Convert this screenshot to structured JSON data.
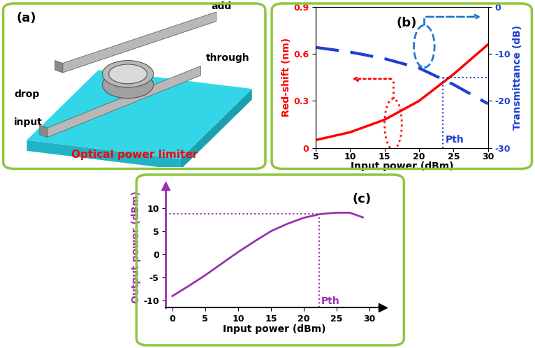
{
  "diagram": {
    "panel": "(a)",
    "caption": "Optical power limiter",
    "ports": [
      "add",
      "through",
      "drop",
      "input"
    ]
  },
  "chart_data": [
    {
      "type": "line",
      "title": "(b)",
      "x_label": "Input power (dBm)",
      "y_label": "Red-shift (nm)",
      "y2_label": "Transmittance (dB)",
      "x": [
        5,
        10,
        15,
        20,
        25,
        30
      ],
      "xlim": [
        5,
        30
      ],
      "xticks": [
        5,
        10,
        15,
        20,
        25,
        30
      ],
      "ylim": [
        0,
        0.9
      ],
      "yticks": [
        0,
        0.3,
        0.6,
        0.9
      ],
      "y2lim": [
        -30,
        0
      ],
      "y2ticks": [
        -30,
        -20,
        -10,
        0
      ],
      "series": [
        {
          "color": "#ff0000",
          "line_style": "solid",
          "values": [
            0.05,
            0.1,
            0.18,
            0.3,
            0.47,
            0.66
          ]
        },
        {
          "color": "#1f3fd0",
          "line_style": "dashed",
          "axis": "y2",
          "values": [
            -8.6,
            -9.6,
            -11.0,
            -13.0,
            -16.5,
            -20.6
          ]
        }
      ],
      "annotations": [
        {
          "text": "Pth",
          "x": 23.5,
          "y": -15,
          "axis": "y2"
        }
      ]
    },
    {
      "type": "line",
      "title": "(c)",
      "x_label": "Input power (dBm)",
      "y_label": "Output power (dBm)",
      "x": [
        0,
        2.5,
        5,
        7.5,
        10,
        12.5,
        15,
        17.5,
        20,
        22.5,
        25,
        27,
        29
      ],
      "xlim": [
        -1,
        32
      ],
      "xticks": [
        0,
        5,
        10,
        15,
        20,
        25,
        30
      ],
      "ylim": [
        -11.5,
        14.8
      ],
      "yticks": [
        -10,
        -5,
        0,
        5,
        10
      ],
      "series": [
        {
          "color": "#9b30b0",
          "line_style": "solid",
          "values": [
            -9,
            -6.8,
            -4.5,
            -2,
            0.5,
            2.8,
            5,
            6.6,
            7.9,
            8.7,
            9,
            9,
            8
          ]
        }
      ],
      "annotations": [
        {
          "text": "Pth",
          "x": 22.3,
          "y": 8.7
        }
      ]
    }
  ]
}
